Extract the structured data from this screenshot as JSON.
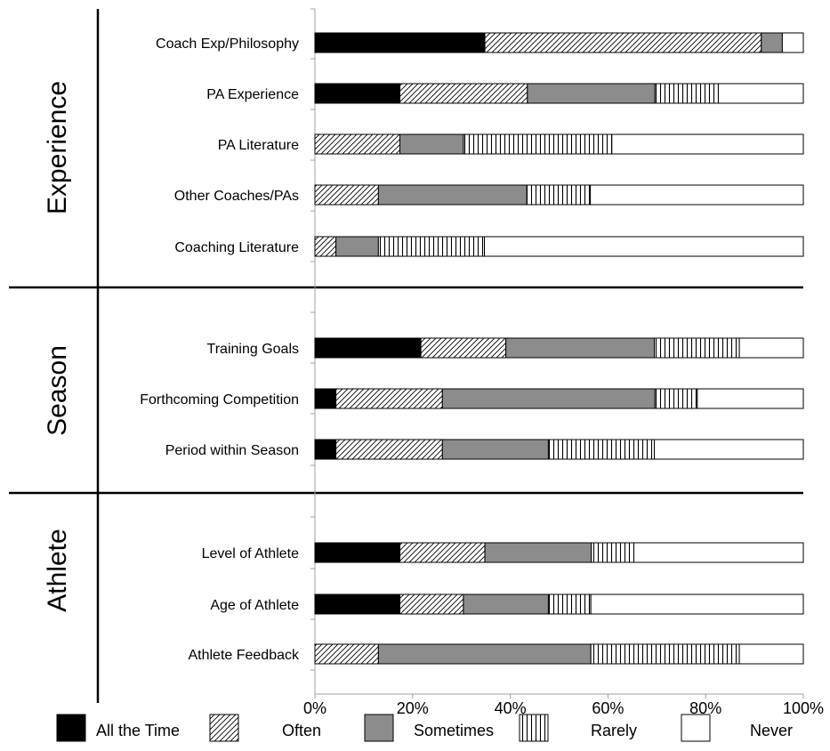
{
  "chart_data": {
    "type": "bar",
    "orientation": "horizontal",
    "stacked": true,
    "normalized": true,
    "title": "",
    "xlabel": "",
    "ylabel": "",
    "xlim": [
      0,
      100
    ],
    "x_ticks": [
      "0%",
      "20%",
      "40%",
      "60%",
      "80%",
      "100%"
    ],
    "grid": false,
    "legend_position": "bottom",
    "groups": [
      {
        "name": "Experience",
        "start": 0,
        "count": 5
      },
      {
        "name": "Season",
        "start": 5,
        "count": 3
      },
      {
        "name": "Athlete",
        "start": 8,
        "count": 3
      }
    ],
    "categories": [
      "Coach Exp/Philosophy",
      "PA Experience",
      "PA Literature",
      "Other Coaches/PAs",
      "Coaching Literature",
      "Training Goals",
      "Forthcoming Competition",
      "Period within Season",
      "Level of Athlete",
      "Age of Athlete",
      "Athlete Feedback"
    ],
    "series": [
      {
        "name": "All the Time",
        "fill": "solid",
        "color": "#000000",
        "values": [
          34.8,
          17.4,
          0,
          0,
          0,
          21.7,
          4.3,
          4.3,
          17.4,
          17.4,
          0
        ]
      },
      {
        "name": "Often",
        "fill": "diagonal-hatch",
        "color": "#000000",
        "values": [
          56.6,
          26.1,
          17.4,
          13.0,
          4.3,
          17.4,
          21.8,
          21.8,
          17.4,
          13.0,
          13.0
        ]
      },
      {
        "name": "Sometimes",
        "fill": "solid",
        "color": "#8c8c8c",
        "values": [
          4.3,
          26.1,
          13.0,
          30.4,
          8.7,
          30.4,
          43.5,
          21.7,
          21.8,
          17.4,
          43.5
        ]
      },
      {
        "name": "Rarely",
        "fill": "vertical-hatch",
        "color": "#000000",
        "values": [
          0,
          13.0,
          30.4,
          13.0,
          21.7,
          17.4,
          8.7,
          21.7,
          8.7,
          8.7,
          30.4
        ]
      },
      {
        "name": "Never",
        "fill": "solid",
        "color": "#ffffff",
        "values": [
          4.3,
          17.4,
          39.2,
          43.6,
          65.3,
          13.1,
          21.7,
          30.5,
          34.7,
          43.5,
          13.1
        ]
      }
    ]
  }
}
